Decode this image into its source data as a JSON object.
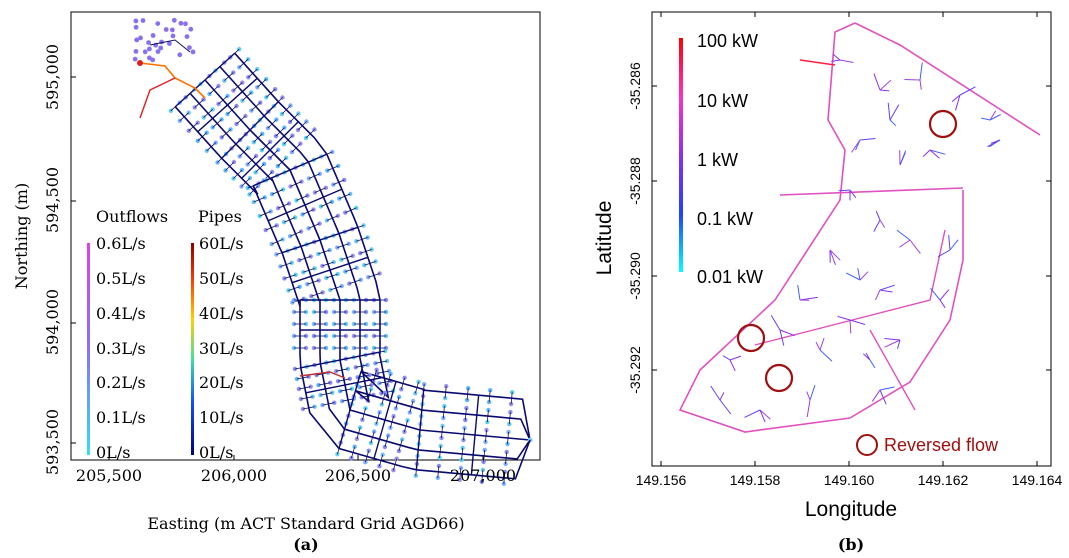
{
  "panel_a": {
    "caption": "(a)",
    "xlabel": "Easting (m ACT Standard Grid AGD66)",
    "ylabel": "Northing (m)",
    "x_ticks": [
      "205,500",
      "206,000",
      "206,500",
      "207,000"
    ],
    "y_ticks": [
      "593,500",
      "594,000",
      "594,500",
      "595,000"
    ],
    "outflows_title": "Outflows",
    "pipes_title": "Pipes",
    "outflow_labels": [
      "0.6L/s",
      "0.5L/s",
      "0.4L/s",
      "0.3L/s",
      "0.2L/s",
      "0.1L/s",
      "0L/s"
    ],
    "pipe_labels": [
      "60L/s",
      "50L/s",
      "40L/s",
      "30L/s",
      "20L/s",
      "10L/s",
      "0L/s"
    ]
  },
  "panel_b": {
    "caption": "(b)",
    "xlabel": "Longitude",
    "ylabel": "Latitude",
    "x_ticks": [
      "149.156",
      "149.158",
      "149.160",
      "149.162",
      "149.164"
    ],
    "y_ticks": [
      "-35.286",
      "-35.288",
      "-35.290",
      "-35.292"
    ],
    "colorbar_labels": [
      "100 kW",
      "10 kW",
      "1 kW",
      "0.1 kW",
      "0.01 kW"
    ],
    "reversed_flow_label": "Reversed flow"
  },
  "colors": {
    "outflow_high": "#e040e8",
    "outflow_low": "#30e0f0",
    "pipe_high": "#8b0000",
    "pipe_low": "#00007a",
    "power_high": "#ff0000",
    "power_low": "#00ffff",
    "reversed_flow": "#a01010",
    "main_line": "#e050c0"
  },
  "chart_data": [
    {
      "type": "scatter",
      "title": "",
      "xlabel": "Easting (m ACT Standard Grid AGD66)",
      "ylabel": "Northing (m)",
      "xlim": [
        205300,
        207400
      ],
      "ylim": [
        593250,
        595300
      ],
      "legend": "left",
      "description_of_marks": "water network nodes colored by outflow; pipes colored by flow",
      "colorbars": [
        {
          "name": "Outflows",
          "range": [
            0,
            0.6
          ],
          "unit": "L/s"
        },
        {
          "name": "Pipes",
          "range": [
            0,
            60
          ],
          "unit": "L/s"
        }
      ]
    },
    {
      "type": "scatter",
      "title": "",
      "xlabel": "Longitude",
      "ylabel": "Latitude",
      "xlim": [
        149.1555,
        149.1645
      ],
      "ylim": [
        -35.2938,
        -35.2848
      ],
      "colorbar": {
        "range": [
          0.01,
          100
        ],
        "unit": "kW",
        "scale": "log"
      },
      "legend": "bottom-right",
      "reversed_flow_points": [
        {
          "x": 149.162,
          "y": -35.2868
        },
        {
          "x": 149.1581,
          "y": -35.2913
        },
        {
          "x": 149.1587,
          "y": -35.2922
        }
      ]
    }
  ]
}
